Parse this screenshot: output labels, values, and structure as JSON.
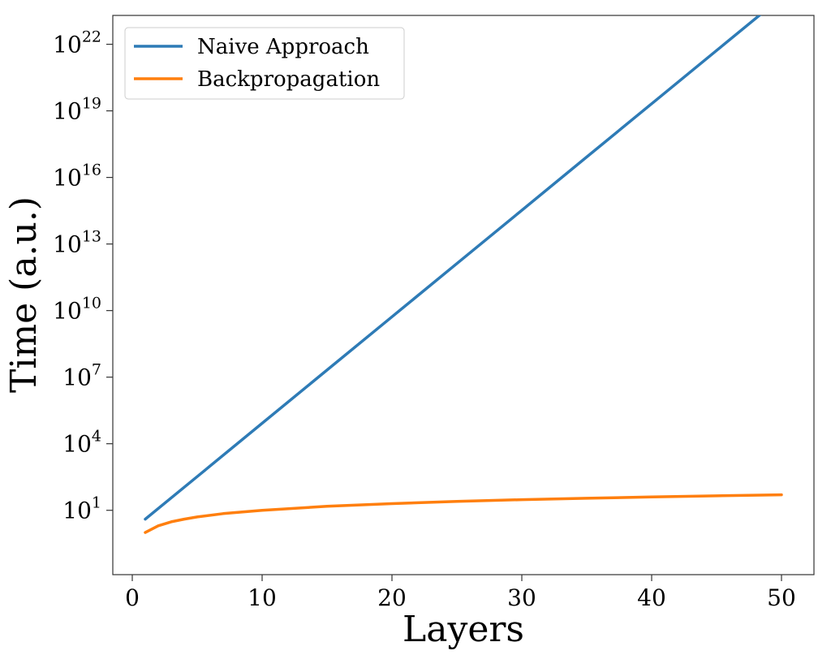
{
  "chart_data": {
    "type": "line",
    "title": "",
    "xlabel": "Layers",
    "ylabel": "Time (a.u.)",
    "xlim": [
      -1.5,
      52.5
    ],
    "ylim_log10": [
      -1.9,
      23.3
    ],
    "y_scale": "log",
    "xticks": [
      0,
      10,
      20,
      30,
      40,
      50
    ],
    "yticks_log10": [
      1,
      4,
      7,
      10,
      13,
      16,
      19,
      22
    ],
    "y_tick_base": "10",
    "legend_position": "top-left",
    "grid": false,
    "series": [
      {
        "name": "Naive Approach",
        "color": "#2e7bb6",
        "x": [
          1,
          5,
          10,
          15,
          20,
          25,
          30,
          35,
          40,
          45,
          50
        ],
        "y_log10": [
          0.6,
          2.52,
          4.92,
          7.32,
          9.72,
          12.12,
          14.52,
          16.92,
          19.32,
          21.72,
          24.12
        ]
      },
      {
        "name": "Backpropagation",
        "color": "#ff7f0e",
        "x": [
          1,
          2,
          3,
          4,
          5,
          7,
          10,
          15,
          20,
          25,
          30,
          35,
          40,
          45,
          50
        ],
        "y_log10": [
          0.0,
          0.3,
          0.48,
          0.6,
          0.7,
          0.85,
          1.0,
          1.18,
          1.3,
          1.4,
          1.48,
          1.54,
          1.6,
          1.65,
          1.7
        ]
      }
    ]
  }
}
